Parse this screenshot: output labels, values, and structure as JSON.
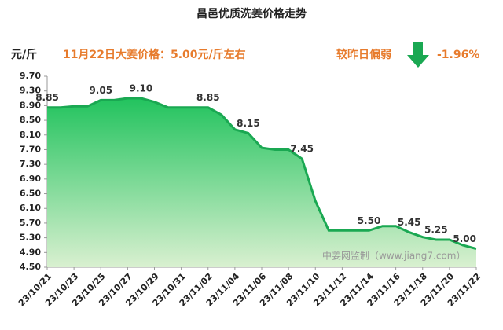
{
  "chart_data": {
    "type": "area",
    "title": "昌邑优质洗姜价格走势",
    "y_label": "元/斤",
    "subtitle": "11月22日大姜价格：5.00元/斤左右",
    "change_text": "较昨日偏弱",
    "change_value": "-1.96%",
    "watermark": "中姜网监制（www.jiang7.com）",
    "color": "#1aa852",
    "categories": [
      "23/10/21",
      null,
      "23/10/23",
      null,
      "23/10/25",
      null,
      "23/10/27",
      null,
      "23/10/29",
      null,
      "23/10/31",
      null,
      "23/11/02",
      null,
      "23/11/04",
      null,
      "23/11/06",
      null,
      "23/11/08",
      null,
      "23/11/10",
      null,
      "23/11/12",
      null,
      "23/11/14",
      null,
      "23/11/16",
      null,
      "23/11/18",
      null,
      "23/11/20",
      null,
      "23/11/22"
    ],
    "values": [
      8.85,
      8.85,
      8.88,
      8.88,
      9.05,
      9.05,
      9.1,
      9.1,
      9.0,
      8.85,
      8.85,
      8.85,
      8.85,
      8.65,
      8.25,
      8.15,
      7.75,
      7.7,
      7.7,
      7.45,
      6.3,
      5.5,
      5.5,
      5.5,
      5.5,
      5.62,
      5.62,
      5.45,
      5.32,
      5.25,
      5.25,
      5.1,
      5.0
    ],
    "value_labels": [
      "8.85",
      null,
      null,
      null,
      "9.05",
      null,
      null,
      "9.10",
      null,
      null,
      null,
      null,
      "8.85",
      null,
      null,
      "8.15",
      null,
      null,
      null,
      "7.45",
      null,
      null,
      null,
      null,
      "5.50",
      null,
      null,
      "5.45",
      null,
      "5.25",
      null,
      null,
      "5.00"
    ],
    "ylim": [
      4.5,
      9.7
    ],
    "yticks": [
      {
        "value": 4.5,
        "label": "4.50"
      },
      {
        "value": 4.9,
        "label": "4.90"
      },
      {
        "value": 5.3,
        "label": "5.30"
      },
      {
        "value": 5.7,
        "label": "5.70"
      },
      {
        "value": 6.1,
        "label": "6.10"
      },
      {
        "value": 6.5,
        "label": "6.50"
      },
      {
        "value": 6.9,
        "label": "6.90"
      },
      {
        "value": 7.3,
        "label": "7.30"
      },
      {
        "value": 7.7,
        "label": "7.70"
      },
      {
        "value": 8.1,
        "label": "8.10"
      },
      {
        "value": 8.5,
        "label": "8.50"
      },
      {
        "value": 8.9,
        "label": "8.90"
      },
      {
        "value": 9.3,
        "label": "9.30"
      },
      {
        "value": 9.7,
        "label": "9.70"
      }
    ],
    "grid": false
  }
}
